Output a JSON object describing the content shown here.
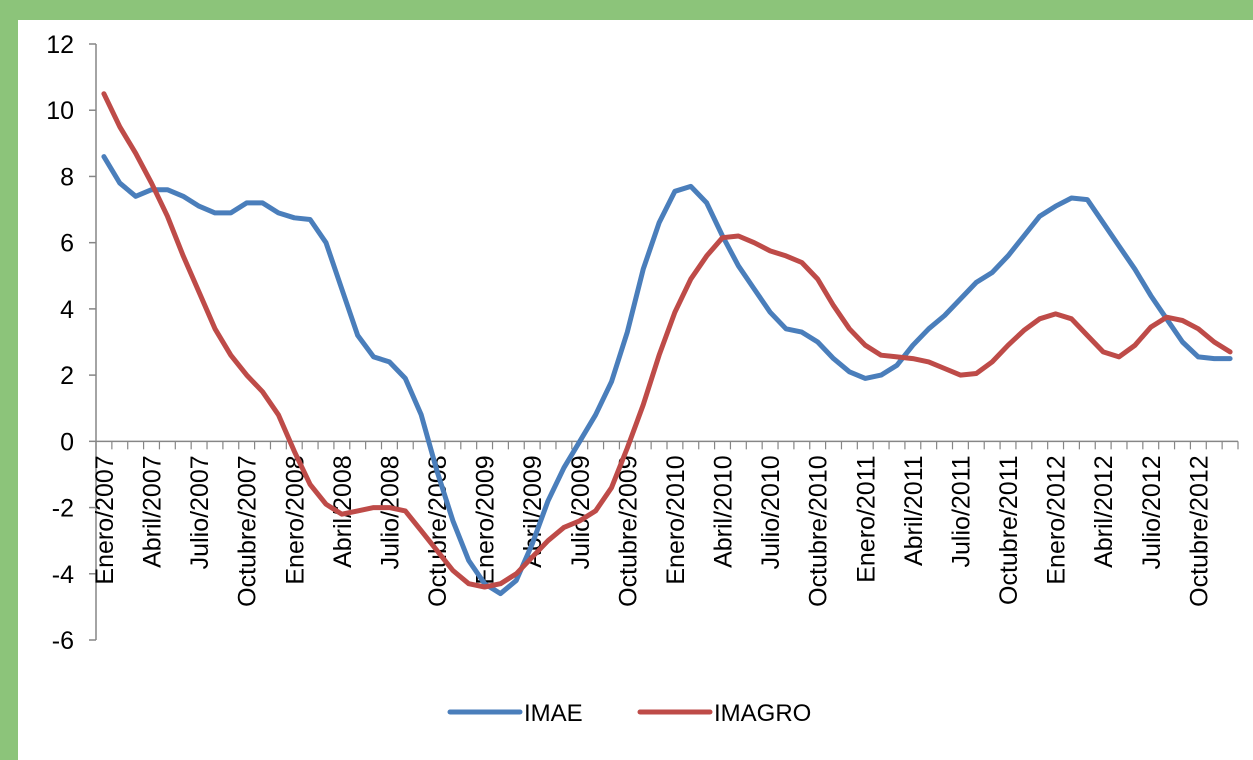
{
  "chart_data": {
    "type": "line",
    "title": "",
    "xlabel": "",
    "ylabel": "",
    "ylim": [
      -6,
      12
    ],
    "yticks": [
      -6,
      -4,
      -2,
      0,
      2,
      4,
      6,
      8,
      10,
      12
    ],
    "x_tick_labels": [
      "Enero/2007",
      "Abril/2007",
      "Julio/2007",
      "Octubre/2007",
      "Enero/2008",
      "Abril/2008",
      "Julio/2008",
      "Octubre/2008",
      "Enero/2009",
      "Abril/2009",
      "Julio/2009",
      "Octubre/2009",
      "Enero/2010",
      "Abril/2010",
      "Julio/2010",
      "Octubre/2010",
      "Enero/2011",
      "Abril/2011",
      "Julio/2011",
      "Octubre/2011",
      "Enero/2012",
      "Abril/2012",
      "Julio/2012",
      "Octubre/2012"
    ],
    "x_label_interval_months": 3,
    "n_points": 72,
    "grid": false,
    "legend_position": "bottom",
    "series": [
      {
        "name": "IMAE",
        "color": "#4a7ebb",
        "values": [
          8.6,
          7.8,
          7.4,
          7.6,
          7.6,
          7.4,
          7.1,
          6.9,
          6.9,
          7.2,
          7.2,
          6.9,
          6.75,
          6.7,
          6.0,
          4.6,
          3.2,
          2.55,
          2.4,
          1.9,
          0.8,
          -0.9,
          -2.4,
          -3.6,
          -4.3,
          -4.6,
          -4.2,
          -3.1,
          -1.8,
          -0.8,
          0.0,
          0.8,
          1.8,
          3.3,
          5.2,
          6.6,
          7.55,
          7.7,
          7.2,
          6.2,
          5.3,
          4.6,
          3.9,
          3.4,
          3.3,
          3.0,
          2.5,
          2.1,
          1.9,
          2.0,
          2.3,
          2.9,
          3.4,
          3.8,
          4.3,
          4.8,
          5.1,
          5.6,
          6.2,
          6.8,
          7.1,
          7.35,
          7.3,
          6.6,
          5.9,
          5.2,
          4.4,
          3.7,
          3.0,
          2.55,
          2.5,
          2.5
        ]
      },
      {
        "name": "IMAGRO",
        "color": "#be4b48",
        "values": [
          10.5,
          9.5,
          8.7,
          7.8,
          6.8,
          5.6,
          4.5,
          3.4,
          2.6,
          2.0,
          1.5,
          0.8,
          -0.3,
          -1.3,
          -1.9,
          -2.2,
          -2.1,
          -2.0,
          -2.0,
          -2.1,
          -2.7,
          -3.3,
          -3.9,
          -4.3,
          -4.4,
          -4.3,
          -4.0,
          -3.5,
          -3.0,
          -2.6,
          -2.4,
          -2.1,
          -1.4,
          -0.2,
          1.1,
          2.6,
          3.9,
          4.9,
          5.6,
          6.15,
          6.2,
          6.0,
          5.75,
          5.6,
          5.4,
          4.9,
          4.1,
          3.4,
          2.9,
          2.6,
          2.55,
          2.5,
          2.4,
          2.2,
          2.0,
          2.05,
          2.4,
          2.9,
          3.35,
          3.7,
          3.85,
          3.7,
          3.2,
          2.7,
          2.55,
          2.9,
          3.45,
          3.75,
          3.65,
          3.4,
          3.0,
          2.7
        ]
      }
    ]
  }
}
